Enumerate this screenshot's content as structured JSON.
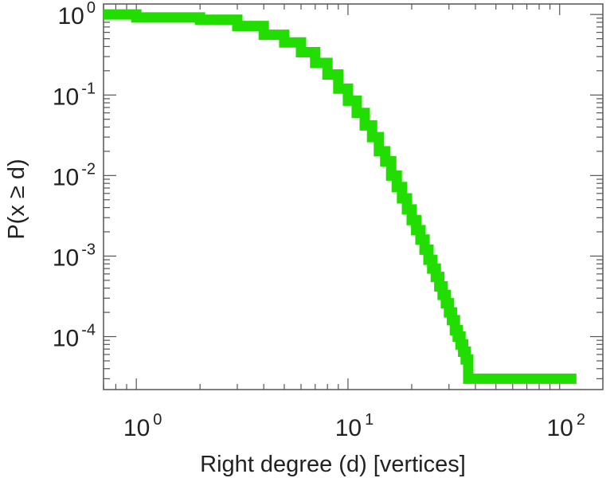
{
  "chart_data": {
    "type": "line",
    "step": true,
    "xlabel": "Right degree (d) [vertices]",
    "ylabel": "P(x ≥ d)",
    "xscale": "log",
    "yscale": "log",
    "xlim": [
      0.7,
      160
    ],
    "ylim": [
      2.2e-05,
      1.35
    ],
    "x_ticks": [
      {
        "value": 1,
        "base": "10",
        "exp": "0"
      },
      {
        "value": 10,
        "base": "10",
        "exp": "1"
      },
      {
        "value": 100,
        "base": "10",
        "exp": "2"
      }
    ],
    "y_ticks": [
      {
        "value": 1,
        "base": "10",
        "exp": "0"
      },
      {
        "value": 0.1,
        "base": "10",
        "exp": "-1"
      },
      {
        "value": 0.01,
        "base": "10",
        "exp": "-2"
      },
      {
        "value": 0.001,
        "base": "10",
        "exp": "-3"
      },
      {
        "value": 0.0001,
        "base": "10",
        "exp": "-4"
      }
    ],
    "grid": false,
    "series": [
      {
        "color": "#22dd00",
        "x": [
          1,
          2,
          3,
          4,
          5,
          6,
          7,
          8,
          9,
          10,
          11,
          12,
          13,
          14,
          15,
          16,
          17,
          18,
          19,
          20,
          21,
          22,
          23,
          24,
          25,
          26,
          27,
          28,
          29,
          30,
          31,
          32,
          33,
          34,
          35,
          36,
          37,
          38,
          120
        ],
        "y": [
          1,
          0.92,
          0.86,
          0.72,
          0.56,
          0.45,
          0.34,
          0.25,
          0.18,
          0.12,
          0.085,
          0.06,
          0.042,
          0.03,
          0.02,
          0.015,
          0.01,
          0.0072,
          0.0052,
          0.0038,
          0.0028,
          0.0021,
          0.0016,
          0.0012,
          0.0009,
          0.0007,
          0.00055,
          0.00042,
          0.00033,
          0.00026,
          0.0002,
          0.00016,
          0.00012,
          0.0001,
          8e-05,
          6.5e-05,
          5.2e-05,
          3e-05,
          3e-05
        ]
      }
    ]
  }
}
